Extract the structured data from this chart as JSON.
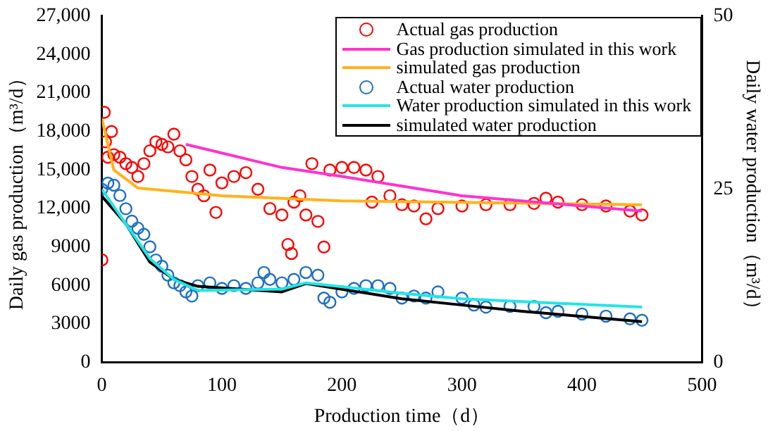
{
  "chart_data": {
    "type": "scatter",
    "xlabel": "Production time（d）",
    "ylabel": "Daily gas production（m³/d）",
    "y2label": "Daily water production（m³/d）",
    "xlim": [
      0,
      500
    ],
    "xticks": [
      0,
      100,
      200,
      300,
      400,
      500
    ],
    "ylim": [
      0,
      27000
    ],
    "yticks": [
      0,
      3000,
      6000,
      9000,
      {
        "value": 12000,
        "label": "12,000"
      },
      {
        "value": 15000,
        "label": "15,000"
      },
      {
        "value": 18000,
        "label": "18,000"
      },
      {
        "value": 21000,
        "label": "21,000"
      },
      {
        "value": 24000,
        "label": "24,000"
      },
      {
        "value": 27000,
        "label": "27,000"
      }
    ],
    "y2lim": [
      0,
      50
    ],
    "y2ticks": [
      0,
      25,
      50
    ],
    "grid": false,
    "legend": "top right",
    "marker": "circle",
    "series": [
      {
        "name": "Actual gas production",
        "color": "#ff0000",
        "x": [
          0,
          2,
          3,
          5,
          8,
          10,
          15,
          20,
          25,
          30,
          35,
          40,
          45,
          50,
          55,
          60,
          65,
          70,
          75,
          80,
          85,
          90,
          95,
          100,
          110,
          120,
          130,
          140,
          150,
          155,
          158,
          160,
          165,
          170,
          175,
          180,
          185,
          190,
          200,
          210,
          220,
          225,
          230,
          240,
          250,
          260,
          270,
          280,
          300,
          320,
          340,
          360,
          370,
          380,
          400,
          420,
          440,
          450
        ],
        "values": [
          8000,
          19500,
          17200,
          16000,
          18000,
          16200,
          16000,
          15500,
          15200,
          14500,
          15500,
          16500,
          17200,
          17000,
          16800,
          17800,
          16500,
          15800,
          14500,
          13500,
          13000,
          15000,
          11700,
          14000,
          14500,
          14800,
          13500,
          12000,
          11500,
          9200,
          8500,
          12500,
          13000,
          11500,
          15500,
          11000,
          9000,
          15000,
          15200,
          15200,
          15000,
          12500,
          14500,
          13000,
          12300,
          12200,
          11200,
          12000,
          12200,
          12300,
          12300,
          12400,
          12800,
          12500,
          12300,
          12200,
          11800,
          11500
        ]
      },
      {
        "name": "Gas production simulated in this work",
        "type": "line",
        "color": "#ff33cc",
        "marker": "none",
        "x": [
          70,
          150,
          200,
          300,
          450
        ],
        "values": [
          17000,
          15200,
          14500,
          13000,
          11800
        ]
      },
      {
        "name": "simulated gas production",
        "type": "line",
        "color": "#ffb31a",
        "marker": "none",
        "x": [
          0,
          10,
          30,
          100,
          200,
          450
        ],
        "values": [
          19000,
          15000,
          13600,
          13000,
          12600,
          12300
        ]
      },
      {
        "name": "Actual water production",
        "axis": "y2",
        "color": "#1f6fbf",
        "x": [
          0,
          5,
          10,
          15,
          20,
          25,
          30,
          35,
          40,
          45,
          50,
          55,
          60,
          65,
          70,
          75,
          80,
          90,
          100,
          110,
          120,
          130,
          135,
          140,
          150,
          160,
          170,
          180,
          185,
          190,
          200,
          210,
          220,
          230,
          240,
          250,
          260,
          270,
          280,
          300,
          310,
          320,
          340,
          360,
          370,
          380,
          400,
          420,
          440,
          450
        ],
        "values": [
          25.0,
          25.9,
          25.6,
          24.1,
          22.2,
          20.4,
          19.4,
          18.5,
          16.7,
          14.8,
          13.9,
          12.6,
          11.5,
          11.1,
          10.2,
          9.6,
          11.1,
          11.5,
          10.7,
          11.1,
          10.7,
          11.5,
          13.0,
          12.0,
          11.5,
          12.0,
          13.0,
          12.6,
          9.3,
          8.7,
          10.2,
          10.7,
          11.1,
          11.1,
          10.7,
          9.3,
          9.6,
          9.3,
          10.2,
          9.3,
          8.3,
          8.0,
          8.1,
          8.1,
          7.2,
          7.4,
          7.0,
          6.7,
          6.3,
          6.1
        ]
      },
      {
        "name": "Water production simulated in this work",
        "type": "line",
        "axis": "y2",
        "color": "#22e5e5",
        "marker": "none",
        "x": [
          0,
          20,
          40,
          60,
          80,
          150,
          170,
          250,
          300,
          450
        ],
        "values": [
          25,
          20,
          15,
          12,
          10.4,
          10.6,
          11.5,
          10,
          9.2,
          8.0
        ]
      },
      {
        "name": "simulated water production",
        "type": "line",
        "axis": "y2",
        "color": "#000000",
        "marker": "none",
        "x": [
          0,
          20,
          40,
          60,
          80,
          150,
          170,
          250,
          300,
          350,
          450
        ],
        "values": [
          24,
          20,
          14.5,
          12,
          11,
          10.2,
          11.4,
          9.2,
          8.3,
          7.4,
          5.9
        ]
      }
    ]
  }
}
